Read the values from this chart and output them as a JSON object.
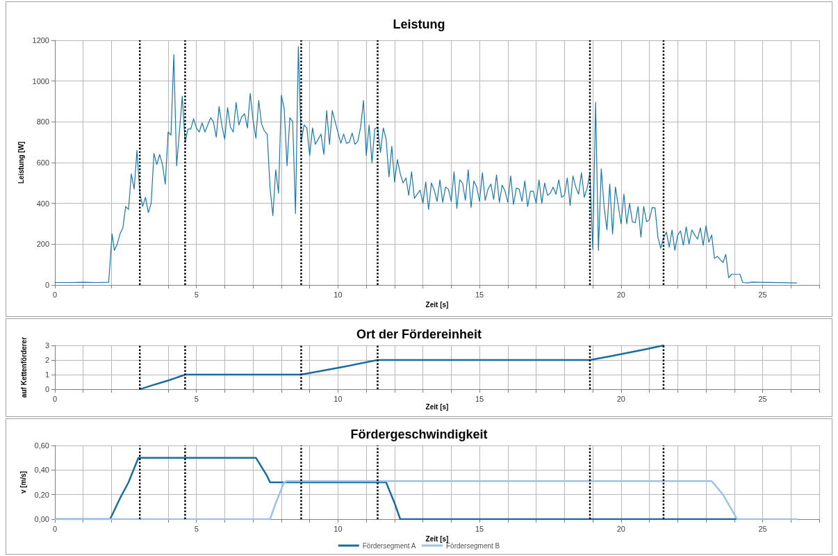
{
  "chart_data": [
    {
      "type": "line",
      "title": "Leistung",
      "xlabel": "Zeit [s]",
      "ylabel": "Leistung [W]",
      "xlim": [
        0,
        27
      ],
      "ylim": [
        0,
        1200
      ],
      "xticks": [
        0,
        {
          "value": 1,
          "label": null
        },
        {
          "value": 2,
          "label": null
        },
        {
          "value": 4,
          "label": null
        },
        5,
        {
          "value": 6,
          "label": null
        },
        {
          "value": 7,
          "label": null
        },
        {
          "value": 8,
          "label": null
        },
        {
          "value": 9,
          "label": null
        },
        10,
        {
          "value": 11,
          "label": null
        },
        {
          "value": 12,
          "label": null
        },
        {
          "value": 13,
          "label": null
        },
        {
          "value": 14,
          "label": null
        },
        15,
        {
          "value": 16,
          "label": null
        },
        {
          "value": 17,
          "label": null
        },
        {
          "value": 18,
          "label": null
        },
        {
          "value": 19,
          "label": null
        },
        20,
        {
          "value": 21,
          "label": null
        },
        {
          "value": 22,
          "label": null
        },
        {
          "value": 23,
          "label": null
        },
        {
          "value": 24,
          "label": null
        },
        25,
        {
          "value": 26,
          "label": null
        },
        {
          "value": 27,
          "label": null
        }
      ],
      "yticks": [
        0,
        200,
        400,
        600,
        800,
        1000,
        1200
      ],
      "grid": true,
      "marker": "none",
      "line_style": "solid",
      "ref_lines": [
        {
          "axis": "x",
          "value": 3.0,
          "color": "#000000",
          "line_style": "dotted"
        },
        {
          "axis": "x",
          "value": 4.6,
          "color": "#000000",
          "line_style": "dotted"
        },
        {
          "axis": "x",
          "value": 8.7,
          "color": "#000000",
          "line_style": "dotted"
        },
        {
          "axis": "x",
          "value": 11.4,
          "color": "#000000",
          "line_style": "dotted"
        },
        {
          "axis": "x",
          "value": 18.9,
          "color": "#000000",
          "line_style": "dotted"
        },
        {
          "axis": "x",
          "value": 21.5,
          "color": "#000000",
          "line_style": "dotted"
        }
      ],
      "series": [
        {
          "color": "#1a76ab",
          "x": [
            0,
            0.5,
            1,
            1.5,
            1.9,
            2.02,
            2.1,
            2.2,
            2.3,
            2.4,
            2.5,
            2.6,
            2.7,
            2.8,
            2.9,
            3.0,
            3.1,
            3.2,
            3.3,
            3.4,
            3.5,
            3.6,
            3.7,
            3.8,
            3.9,
            4.0,
            4.1,
            4.2,
            4.3,
            4.5,
            4.6,
            4.7,
            4.8,
            4.9,
            5.0,
            5.1,
            5.2,
            5.3,
            5.5,
            5.6,
            5.7,
            5.8,
            5.9,
            6.0,
            6.1,
            6.2,
            6.3,
            6.4,
            6.5,
            6.6,
            6.7,
            6.8,
            6.9,
            7.0,
            7.1,
            7.2,
            7.3,
            7.4,
            7.5,
            7.6,
            7.7,
            7.8,
            7.9,
            8.0,
            8.1,
            8.2,
            8.3,
            8.4,
            8.5,
            8.6,
            8.7,
            8.8,
            8.9,
            9.0,
            9.1,
            9.2,
            9.4,
            9.5,
            9.6,
            9.7,
            9.8,
            9.9,
            10.1,
            10.2,
            10.3,
            10.4,
            10.5,
            10.6,
            10.7,
            10.8,
            10.9,
            11.0,
            11.1,
            11.2,
            11.3,
            11.4,
            11.5,
            11.6,
            11.7,
            11.8,
            11.9,
            12.0,
            12.1,
            12.2,
            12.3,
            12.4,
            12.5,
            12.6,
            12.7,
            12.9,
            13.0,
            13.1,
            13.2,
            13.3,
            13.4,
            13.5,
            13.6,
            13.7,
            13.8,
            13.9,
            14.0,
            14.1,
            14.2,
            14.3,
            14.4,
            14.5,
            14.6,
            14.7,
            14.8,
            14.9,
            15.0,
            15.1,
            15.2,
            15.3,
            15.4,
            15.5,
            15.6,
            15.7,
            15.8,
            15.9,
            16.0,
            16.1,
            16.2,
            16.3,
            16.4,
            16.5,
            16.6,
            16.7,
            16.8,
            16.9,
            17.0,
            17.1,
            17.2,
            17.3,
            17.4,
            17.5,
            17.6,
            17.7,
            17.8,
            17.9,
            18.0,
            18.1,
            18.2,
            18.3,
            18.4,
            18.5,
            18.6,
            18.7,
            18.8,
            18.9,
            19.0,
            19.1,
            19.2,
            19.3,
            19.4,
            19.5,
            19.6,
            19.7,
            19.8,
            19.9,
            20.0,
            20.1,
            20.2,
            20.3,
            20.4,
            20.5,
            20.6,
            20.7,
            20.8,
            20.9,
            21.0,
            21.1,
            21.2,
            21.3,
            21.4,
            21.5,
            21.6,
            21.7,
            21.8,
            21.9,
            22.0,
            22.1,
            22.2,
            22.3,
            22.4,
            22.5,
            22.6,
            22.7,
            22.8,
            22.9,
            23.0,
            23.1,
            23.2,
            23.3,
            23.4,
            23.5,
            23.6,
            23.7,
            23.8,
            23.9,
            24.2,
            24.3,
            24.5,
            24.6,
            26.2
          ],
          "values": [
            12,
            12,
            13,
            12,
            13,
            250,
            170,
            200,
            250,
            280,
            385,
            370,
            545,
            470,
            660,
            450,
            385,
            430,
            355,
            400,
            645,
            590,
            640,
            590,
            495,
            750,
            735,
            1130,
            585,
            925,
            700,
            765,
            765,
            815,
            770,
            750,
            795,
            750,
            820,
            800,
            725,
            875,
            780,
            715,
            870,
            775,
            750,
            895,
            785,
            825,
            840,
            770,
            940,
            810,
            720,
            905,
            790,
            755,
            740,
            475,
            340,
            565,
            450,
            930,
            865,
            585,
            820,
            800,
            350,
            1170,
            700,
            785,
            770,
            635,
            770,
            690,
            740,
            640,
            855,
            690,
            855,
            800,
            695,
            740,
            695,
            700,
            745,
            690,
            705,
            775,
            905,
            635,
            785,
            600,
            765,
            775,
            650,
            770,
            715,
            530,
            680,
            505,
            615,
            545,
            500,
            525,
            440,
            555,
            425,
            465,
            400,
            505,
            370,
            500,
            465,
            410,
            515,
            405,
            480,
            470,
            410,
            555,
            375,
            515,
            500,
            415,
            565,
            380,
            510,
            480,
            410,
            550,
            415,
            470,
            495,
            420,
            540,
            405,
            490,
            460,
            405,
            535,
            395,
            475,
            470,
            410,
            510,
            385,
            460,
            460,
            400,
            515,
            400,
            500,
            440,
            450,
            480,
            445,
            515,
            430,
            440,
            525,
            390,
            535,
            480,
            445,
            550,
            430,
            475,
            550,
            175,
            895,
            170,
            570,
            385,
            270,
            495,
            250,
            480,
            390,
            300,
            445,
            300,
            400,
            310,
            305,
            385,
            235,
            385,
            310,
            320,
            380,
            378,
            235,
            180,
            230,
            260,
            185,
            270,
            170,
            245,
            265,
            195,
            285,
            200,
            270,
            245,
            225,
            280,
            195,
            290,
            210,
            245,
            130,
            140,
            125,
            110,
            150,
            35,
            52,
            52,
            12,
            10,
            14,
            10
          ]
        }
      ]
    },
    {
      "type": "line",
      "title": "Ort der Fördereinheit",
      "xlabel": "Zeit [s]",
      "ylabel": "auf Kettenförderer",
      "xlim": [
        0,
        27
      ],
      "ylim": [
        0,
        3
      ],
      "xticks": [
        0,
        {
          "value": 1,
          "label": null
        },
        {
          "value": 2,
          "label": null
        },
        {
          "value": 4,
          "label": null
        },
        5,
        {
          "value": 6,
          "label": null
        },
        {
          "value": 7,
          "label": null
        },
        {
          "value": 8,
          "label": null
        },
        {
          "value": 9,
          "label": null
        },
        10,
        {
          "value": 11,
          "label": null
        },
        {
          "value": 12,
          "label": null
        },
        {
          "value": 13,
          "label": null
        },
        {
          "value": 14,
          "label": null
        },
        15,
        {
          "value": 16,
          "label": null
        },
        {
          "value": 17,
          "label": null
        },
        {
          "value": 18,
          "label": null
        },
        {
          "value": 19,
          "label": null
        },
        20,
        {
          "value": 21,
          "label": null
        },
        {
          "value": 22,
          "label": null
        },
        {
          "value": 23,
          "label": null
        },
        {
          "value": 24,
          "label": null
        },
        25,
        {
          "value": 26,
          "label": null
        },
        {
          "value": 27,
          "label": null
        }
      ],
      "yticks": [
        0,
        1,
        2,
        3
      ],
      "grid": true,
      "marker": "none",
      "line_style": "solid",
      "ref_lines": [
        {
          "axis": "x",
          "value": 3.0,
          "color": "#000000",
          "line_style": "dotted"
        },
        {
          "axis": "x",
          "value": 4.6,
          "color": "#000000",
          "line_style": "dotted"
        },
        {
          "axis": "x",
          "value": 8.7,
          "color": "#000000",
          "line_style": "dotted"
        },
        {
          "axis": "x",
          "value": 11.4,
          "color": "#000000",
          "line_style": "dotted"
        },
        {
          "axis": "x",
          "value": 18.9,
          "color": "#000000",
          "line_style": "dotted"
        },
        {
          "axis": "x",
          "value": 21.5,
          "color": "#000000",
          "line_style": "dotted"
        }
      ],
      "series": [
        {
          "color": "#1a6c9e",
          "x": [
            3.0,
            3.4,
            4.0,
            4.5,
            4.6,
            8.7,
            10.1,
            11.4,
            18.9,
            19.6,
            20.9,
            21.5
          ],
          "values": [
            0,
            0.25,
            0.6,
            0.93,
            1,
            1,
            1.5,
            2,
            2,
            2.25,
            2.75,
            3
          ]
        }
      ]
    },
    {
      "type": "line",
      "title": "Fördergeschwindigkeit",
      "xlabel": "Zeit [s]",
      "ylabel": "v [m/s]",
      "xlim": [
        0,
        27
      ],
      "ylim": [
        0,
        0.6
      ],
      "xticks": [
        0,
        {
          "value": 1,
          "label": null
        },
        {
          "value": 2,
          "label": null
        },
        {
          "value": 4,
          "label": null
        },
        5,
        {
          "value": 6,
          "label": null
        },
        {
          "value": 7,
          "label": null
        },
        {
          "value": 8,
          "label": null
        },
        {
          "value": 9,
          "label": null
        },
        10,
        {
          "value": 11,
          "label": null
        },
        {
          "value": 12,
          "label": null
        },
        {
          "value": 13,
          "label": null
        },
        {
          "value": 14,
          "label": null
        },
        15,
        {
          "value": 16,
          "label": null
        },
        {
          "value": 17,
          "label": null
        },
        {
          "value": 18,
          "label": null
        },
        {
          "value": 19,
          "label": null
        },
        20,
        {
          "value": 21,
          "label": null
        },
        {
          "value": 22,
          "label": null
        },
        {
          "value": 23,
          "label": null
        },
        {
          "value": 24,
          "label": null
        },
        25,
        {
          "value": 26,
          "label": null
        },
        {
          "value": 27,
          "label": null
        }
      ],
      "yticks": [
        {
          "value": 0,
          "label": "0,00"
        },
        {
          "value": 0.2,
          "label": "0,20"
        },
        {
          "value": 0.4,
          "label": "0,40"
        },
        {
          "value": 0.6,
          "label": "0,60"
        }
      ],
      "grid": true,
      "marker": "none",
      "line_style": "solid",
      "legend": "bottom",
      "ref_lines": [
        {
          "axis": "x",
          "value": 3.0,
          "color": "#000000",
          "line_style": "dotted"
        },
        {
          "axis": "x",
          "value": 4.6,
          "color": "#000000",
          "line_style": "dotted"
        },
        {
          "axis": "x",
          "value": 8.7,
          "color": "#000000",
          "line_style": "dotted"
        },
        {
          "axis": "x",
          "value": 11.4,
          "color": "#000000",
          "line_style": "dotted"
        },
        {
          "axis": "x",
          "value": 18.9,
          "color": "#000000",
          "line_style": "dotted"
        },
        {
          "axis": "x",
          "value": 21.5,
          "color": "#000000",
          "line_style": "dotted"
        }
      ],
      "series": [
        {
          "name": "Fördersegment A",
          "color": "#1a6c9e",
          "x": [
            0,
            1.95,
            2.3,
            2.6,
            2.95,
            7.1,
            7.5,
            7.6,
            11.7,
            12.0,
            12.2,
            24.1
          ],
          "values": [
            0,
            0,
            0.17,
            0.3,
            0.5,
            0.5,
            0.35,
            0.3,
            0.3,
            0.13,
            0,
            0
          ]
        },
        {
          "name": "Fördersegment B",
          "color": "#9dc3e6",
          "x": [
            0,
            7.6,
            7.8,
            8.1,
            8.2,
            23.2,
            23.6,
            24.1,
            26.2
          ],
          "values": [
            0,
            0,
            0.13,
            0.3,
            0.31,
            0.31,
            0.2,
            0,
            0
          ]
        }
      ]
    }
  ]
}
